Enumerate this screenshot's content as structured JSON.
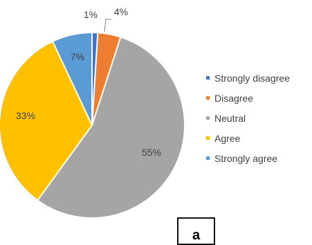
{
  "chart_data": {
    "type": "pie",
    "categories": [
      "Strongly disagree",
      "Disagree",
      "Neutral",
      "Agree",
      "Strongly agree"
    ],
    "values": [
      1,
      4,
      55,
      33,
      7
    ],
    "data_labels": [
      "1%",
      "4%",
      "55%",
      "33%",
      "7%"
    ],
    "colors": [
      "#4472C4",
      "#ED7D31",
      "#A5A5A5",
      "#FFC000",
      "#5B9BD5"
    ],
    "legend_position": "right",
    "start_angle_degrees": 0,
    "direction": "clockwise"
  },
  "panel_label": "a"
}
